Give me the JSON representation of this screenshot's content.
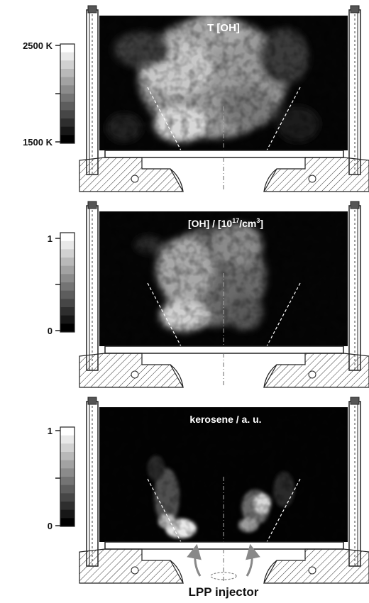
{
  "panels": [
    {
      "title": "T [OH]",
      "scale": {
        "top": "2500 K",
        "mid": "",
        "bottom": "1500 K"
      },
      "field": "temperature"
    },
    {
      "title_main": "[OH]  /   [10",
      "title_sup": "17",
      "title_tail": "/cm",
      "title_sup2": "3",
      "title_end": "]",
      "scale": {
        "top": "1",
        "mid": "",
        "bottom": "0"
      },
      "field": "oh"
    },
    {
      "title": "kerosene  /  a. u.",
      "scale": {
        "top": "1",
        "mid": "",
        "bottom": "0"
      },
      "field": "kerosene"
    }
  ],
  "injector_label": "LPP injector",
  "colorbar": {
    "levels": 12,
    "low_color": "#000000",
    "high_color": "#ffffff"
  }
}
